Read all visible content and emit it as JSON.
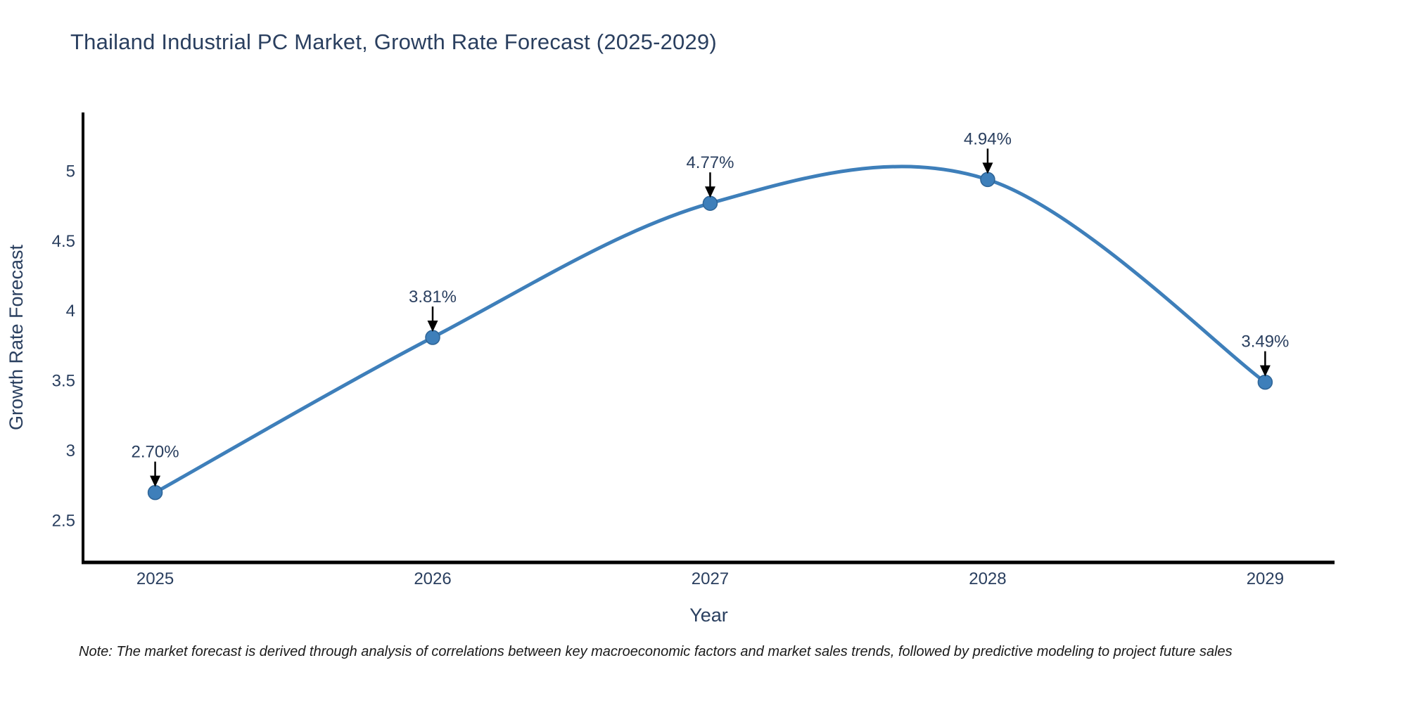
{
  "note": "Note: The market forecast is derived through analysis of correlations between key macroeconomic factors and market sales trends, followed by predictive modeling to project future sales",
  "chart_data": {
    "type": "line",
    "title": "Thailand Industrial PC Market, Growth Rate Forecast (2025-2029)",
    "x": [
      2025,
      2026,
      2027,
      2028,
      2029
    ],
    "y": [
      2.7,
      3.81,
      4.77,
      4.94,
      3.49
    ],
    "point_labels": [
      "2.70%",
      "3.81%",
      "4.77%",
      "4.94%",
      "3.49%"
    ],
    "xticks": [
      "2025",
      "2026",
      "2027",
      "2028",
      "2029"
    ],
    "yticks": [
      2.5,
      3,
      3.5,
      4,
      4.5,
      5
    ],
    "xlabel": "Year",
    "ylabel": "Growth Rate Forecast",
    "xlim": [
      2024.74,
      2029.25
    ],
    "ylim": [
      2.2,
      5.42
    ],
    "line_shape": "spline",
    "grid": false,
    "legend": false,
    "colors": {
      "line": "#3e7fba",
      "marker": "#3e7fba",
      "marker_edge": "#2e6496",
      "axis_line": "#000000",
      "text": "#2a3f5f",
      "annotation_arrow": "#000000",
      "note_text": "#1a1a1a",
      "background": "#ffffff"
    }
  }
}
